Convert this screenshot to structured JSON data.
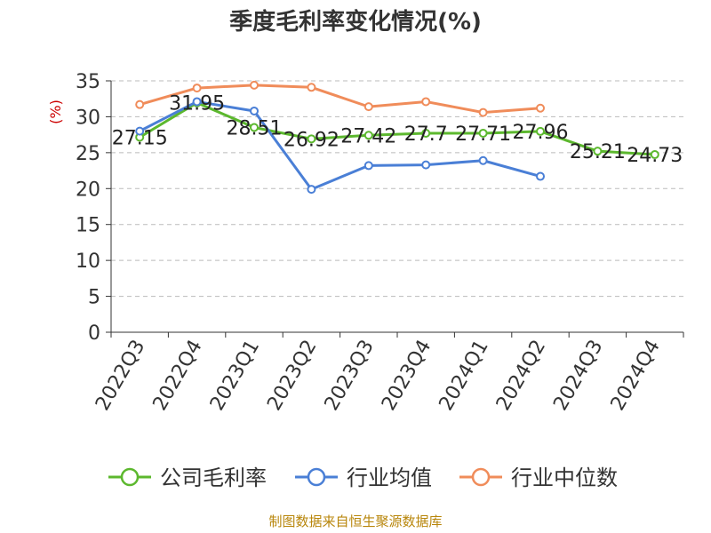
{
  "chart_data": {
    "type": "line",
    "title": "季度毛利率变化情况(%)",
    "ylabel": "(%)",
    "ylim": [
      0,
      35
    ],
    "yticks": [
      0,
      5,
      10,
      15,
      20,
      25,
      30,
      35
    ],
    "grid": true,
    "legend_position": "bottom",
    "categories": [
      "2022Q3",
      "2022Q4",
      "2023Q1",
      "2023Q2",
      "2023Q3",
      "2023Q4",
      "2024Q1",
      "2024Q2",
      "2024Q3",
      "2024Q4"
    ],
    "series": [
      {
        "name": "公司毛利率",
        "color": "#5cb82e",
        "values": [
          27.15,
          31.95,
          28.51,
          26.92,
          27.42,
          27.7,
          27.71,
          27.96,
          25.21,
          24.73
        ],
        "labels": [
          "27.15",
          "31.95",
          "28.51",
          "26.92",
          "27.42",
          "27.7",
          "27.71",
          "27.96",
          "25.21",
          "24.73"
        ]
      },
      {
        "name": "行业均值",
        "color": "#4a7fd6",
        "values": [
          28.0,
          32.1,
          30.8,
          19.9,
          23.2,
          23.3,
          23.9,
          21.7,
          null,
          null
        ]
      },
      {
        "name": "行业中位数",
        "color": "#f08c5a",
        "values": [
          31.7,
          34.0,
          34.4,
          34.1,
          31.4,
          32.1,
          30.6,
          31.2,
          null,
          null
        ]
      }
    ]
  },
  "source": "制图数据来自恒生聚源数据库",
  "colors": {
    "title": "#333333",
    "ylabel": "#cc0000",
    "axis": "#333333",
    "grid": "#bbbbbb",
    "source": "#b8860b"
  }
}
